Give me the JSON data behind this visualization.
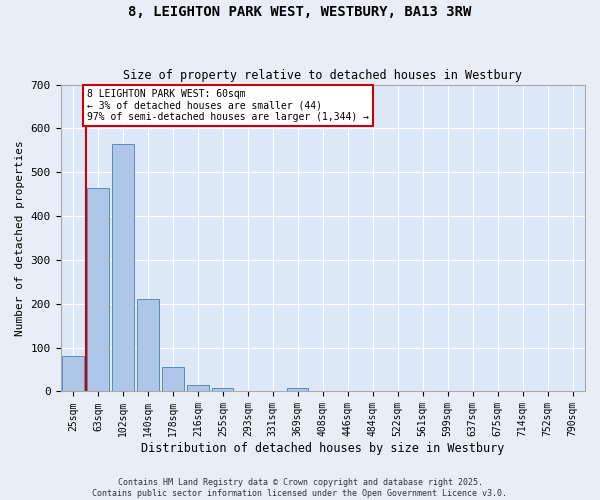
{
  "title_line1": "8, LEIGHTON PARK WEST, WESTBURY, BA13 3RW",
  "title_line2": "Size of property relative to detached houses in Westbury",
  "xlabel": "Distribution of detached houses by size in Westbury",
  "ylabel": "Number of detached properties",
  "bar_labels": [
    "25sqm",
    "63sqm",
    "102sqm",
    "140sqm",
    "178sqm",
    "216sqm",
    "255sqm",
    "293sqm",
    "331sqm",
    "369sqm",
    "408sqm",
    "446sqm",
    "484sqm",
    "522sqm",
    "561sqm",
    "599sqm",
    "637sqm",
    "675sqm",
    "714sqm",
    "752sqm",
    "790sqm"
  ],
  "bar_values": [
    80,
    465,
    565,
    210,
    55,
    15,
    8,
    0,
    0,
    8,
    0,
    0,
    0,
    0,
    0,
    0,
    0,
    0,
    0,
    0,
    0
  ],
  "bar_color": "#aec6e8",
  "bar_edge_color": "#5b8db8",
  "vline_color": "#cc0000",
  "vline_x": 0.5,
  "annotation_text": "8 LEIGHTON PARK WEST: 60sqm\n← 3% of detached houses are smaller (44)\n97% of semi-detached houses are larger (1,344) →",
  "ylim": [
    0,
    700
  ],
  "yticks": [
    0,
    100,
    200,
    300,
    400,
    500,
    600,
    700
  ],
  "background_color": "#dce8f8",
  "fig_background_color": "#e8eef8",
  "grid_color": "#ffffff",
  "footer_line1": "Contains HM Land Registry data © Crown copyright and database right 2025.",
  "footer_line2": "Contains public sector information licensed under the Open Government Licence v3.0."
}
